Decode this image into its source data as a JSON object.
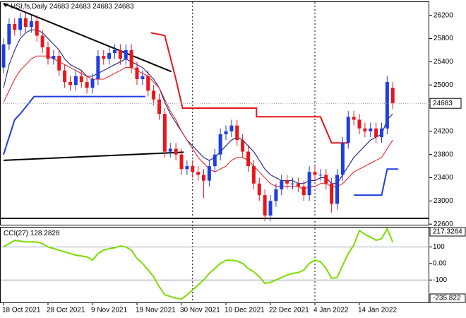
{
  "chart_data": [
    {
      "type": "candlestick",
      "title": "HSI,fs,Daily",
      "header_values": [
        "24683",
        "24683",
        "24683",
        "24683"
      ],
      "categories": [
        "18 Oct 2021",
        null,
        null,
        null,
        null,
        null,
        null,
        null,
        "28 Oct 2021",
        null,
        null,
        null,
        null,
        null,
        null,
        null,
        "9 Nov 2021",
        null,
        null,
        null,
        null,
        null,
        null,
        null,
        "19 Nov 2021",
        null,
        null,
        null,
        null,
        null,
        null,
        null,
        "30 Nov 2021",
        null,
        null,
        null,
        null,
        null,
        null,
        null,
        "10 Dec 2021",
        null,
        null,
        null,
        null,
        null,
        null,
        null,
        "22 Dec 2021",
        null,
        null,
        null,
        null,
        null,
        null,
        null,
        "4 Jan 2022",
        null,
        null,
        null,
        null,
        null,
        null,
        null,
        "14 Jan 2022",
        null,
        null,
        null,
        null,
        null,
        null
      ],
      "open": [
        25300,
        25700,
        26050,
        25950,
        26150,
        26000,
        26100,
        25850,
        25650,
        25450,
        25500,
        25250,
        25050,
        25000,
        25150,
        25050,
        24950,
        25100,
        25500,
        25450,
        25550,
        25600,
        25450,
        25600,
        25300,
        25100,
        25150,
        24900,
        24750,
        24500,
        23850,
        23900,
        23800,
        23550,
        23600,
        23500,
        23450,
        23350,
        23600,
        23800,
        24150,
        24200,
        24300,
        24050,
        23850,
        23600,
        23300,
        23100,
        22750,
        23000,
        23200,
        23350,
        23300,
        23300,
        23250,
        23100,
        23500,
        23450,
        23450,
        23300,
        22950,
        23450,
        24000,
        24450,
        24400,
        24250,
        24200,
        24250,
        24100,
        24250,
        24950
      ],
      "high": [
        25800,
        26150,
        26150,
        26250,
        26250,
        26200,
        26200,
        25950,
        25750,
        25600,
        25600,
        25350,
        25150,
        25250,
        25250,
        25150,
        25200,
        25600,
        25600,
        25650,
        25700,
        25700,
        25700,
        25700,
        25400,
        25250,
        25250,
        25000,
        24850,
        24600,
        24000,
        24000,
        23900,
        23700,
        23700,
        23600,
        23550,
        23700,
        23900,
        24250,
        24300,
        24400,
        24400,
        24150,
        23950,
        23700,
        23400,
        23200,
        23100,
        23300,
        23450,
        23450,
        23400,
        23400,
        23350,
        23600,
        23600,
        23550,
        23550,
        23400,
        23550,
        24100,
        24550,
        24550,
        24500,
        24350,
        24350,
        24350,
        24350,
        25150,
        25050
      ],
      "low": [
        25200,
        25600,
        25850,
        25850,
        25900,
        25900,
        25750,
        25550,
        25350,
        25350,
        25150,
        24950,
        24900,
        24900,
        24950,
        24850,
        24850,
        25000,
        25350,
        25350,
        25450,
        25350,
        25350,
        25200,
        25000,
        25000,
        24800,
        24650,
        24400,
        23750,
        23750,
        23700,
        23450,
        23450,
        23400,
        23350,
        23050,
        23250,
        23500,
        23700,
        24050,
        24100,
        23950,
        23750,
        23500,
        23200,
        23000,
        22650,
        22650,
        22900,
        23100,
        23200,
        23200,
        23150,
        23000,
        23000,
        23350,
        23350,
        23200,
        22800,
        22850,
        23350,
        23900,
        24300,
        24150,
        24100,
        24100,
        24000,
        24000,
        24150,
        24583
      ],
      "close": [
        25700,
        26050,
        25950,
        26150,
        26000,
        26100,
        25850,
        25650,
        25450,
        25500,
        25250,
        25050,
        25000,
        25150,
        25050,
        24950,
        25100,
        25500,
        25450,
        25550,
        25600,
        25450,
        25600,
        25300,
        25100,
        25150,
        24900,
        24750,
        24500,
        23850,
        23900,
        23800,
        23550,
        23600,
        23500,
        23450,
        23350,
        23600,
        23800,
        24150,
        24200,
        24300,
        24050,
        23850,
        23600,
        23300,
        23100,
        22750,
        23000,
        23200,
        23350,
        23300,
        23300,
        23250,
        23100,
        23500,
        23450,
        23450,
        23300,
        22950,
        23450,
        24000,
        24450,
        24400,
        24250,
        24200,
        24250,
        24100,
        24250,
        25050,
        24683
      ],
      "up_color": "#1f3de0",
      "down_color": "#e8161b",
      "series": [
        {
          "color": "#0a0a80",
          "values": [
            24950,
            25350,
            25600,
            25800,
            25900,
            25950,
            25950,
            25900,
            25800,
            25700,
            25600,
            25450,
            25350,
            25300,
            25250,
            25150,
            25150,
            25200,
            25250,
            25300,
            25350,
            25400,
            25450,
            25400,
            25350,
            25300,
            25200,
            25100,
            24950,
            24700,
            24500,
            24350,
            24200,
            24050,
            23950,
            23850,
            23750,
            23700,
            23750,
            23850,
            23950,
            24050,
            24100,
            24050,
            23950,
            23850,
            23700,
            23550,
            23450,
            23400,
            23350,
            23350,
            23350,
            23300,
            23300,
            23350,
            23350,
            23400,
            23400,
            23300,
            23300,
            23450,
            23600,
            23750,
            23850,
            23950,
            24050,
            24100,
            24150,
            24400,
            24500
          ]
        },
        {
          "color": "#e8161b",
          "values": [
            24700,
            24900,
            25100,
            25250,
            25350,
            25450,
            25500,
            25500,
            25500,
            25450,
            25400,
            25350,
            25300,
            25250,
            25200,
            25150,
            25100,
            25100,
            25100,
            25150,
            25200,
            25250,
            25300,
            25300,
            25250,
            25200,
            25150,
            25050,
            24950,
            24750,
            24550,
            24400,
            24200,
            24050,
            23900,
            23750,
            23650,
            23550,
            23500,
            23550,
            23600,
            23700,
            23750,
            23750,
            23700,
            23600,
            23500,
            23400,
            23300,
            23250,
            23250,
            23250,
            23250,
            23250,
            23200,
            23250,
            23250,
            23300,
            23300,
            23250,
            23250,
            23300,
            23400,
            23500,
            23550,
            23600,
            23650,
            23700,
            23750,
            23900,
            24050
          ]
        }
      ],
      "steps": [
        {
          "color": "#e8161b",
          "x": [
            26.5,
            29,
            31,
            32.2,
            45.5,
            45.5,
            57,
            59,
            62
          ],
          "values": [
            25900,
            25850,
            25100,
            24600,
            24600,
            24450,
            24450,
            24000,
            24000
          ]
        },
        {
          "color": "#1f3de0",
          "x": [
            0,
            2,
            3,
            5.5,
            25.5,
            44,
            63,
            68,
            69,
            71
          ],
          "values": [
            23800,
            24400,
            24500,
            24800,
            24800,
            null,
            23100,
            23100,
            23550,
            23550
          ]
        }
      ],
      "trendlines": [
        {
          "x": [
            0,
            30.2
          ],
          "values": [
            26406,
            25230
          ]
        },
        {
          "x": [
            0,
            32.4
          ],
          "values": [
            23700,
            23840
          ]
        }
      ],
      "hline": 22700,
      "separators": [
        34,
        56
      ],
      "ylim": [
        22590,
        26440
      ],
      "yticks": [
        26200,
        25800,
        25400,
        25000,
        24200,
        23800,
        23400,
        23000,
        22600
      ]
    },
    {
      "type": "line",
      "title": "CCI(27)",
      "value_label": "128.2828",
      "color": "#7cdc00",
      "values": [
        100,
        120,
        140,
        135,
        130,
        130,
        130,
        120,
        100,
        90,
        80,
        70,
        60,
        50,
        45,
        40,
        20,
        60,
        80,
        90,
        95,
        105,
        100,
        80,
        30,
        0,
        -40,
        -80,
        -140,
        -190,
        -200,
        -210,
        -215,
        -190,
        -160,
        -130,
        -100,
        -60,
        -30,
        0,
        20,
        20,
        15,
        0,
        -30,
        -50,
        -80,
        -120,
        -115,
        -100,
        -85,
        -70,
        -60,
        -55,
        -40,
        0,
        20,
        10,
        -30,
        -90,
        -85,
        -10,
        60,
        110,
        200,
        175,
        160,
        140,
        150,
        210,
        128.2828
      ],
      "levels": [
        100,
        -100
      ],
      "ylim": [
        -235.822,
        217.3264
      ],
      "yticks": [
        {
          "value": 217.3264,
          "label": "217.3264"
        },
        100,
        {
          "value": 0,
          "label": "0.00"
        },
        -100,
        {
          "value": -235.822,
          "label": "-235.822"
        }
      ]
    }
  ]
}
